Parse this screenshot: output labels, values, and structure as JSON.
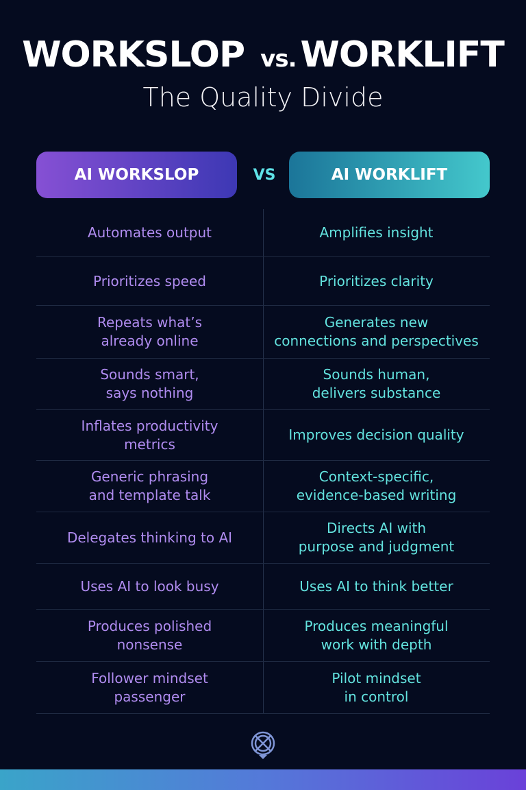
{
  "header": {
    "title_left": "WORKSLOP",
    "title_vs": "vs.",
    "title_right": "WORKLIFT",
    "subtitle": "The Quality Divide"
  },
  "columns": {
    "left_label": "AI WORKSLOP",
    "vs_label": "VS",
    "right_label": "AI WORKLIFT"
  },
  "rows": [
    {
      "left": "Automates output",
      "right": "Amplifies insight"
    },
    {
      "left": "Prioritizes speed",
      "right": "Prioritizes clarity"
    },
    {
      "left": "Repeats what’s\nalready online",
      "right": "Generates new\nconnections and perspectives"
    },
    {
      "left": "Sounds smart,\nsays nothing",
      "right": "Sounds human,\ndelivers substance"
    },
    {
      "left": "Inflates productivity\nmetrics",
      "right": "Improves decision quality"
    },
    {
      "left": "Generic phrasing\nand template talk",
      "right": "Context-specific,\nevidence-based writing"
    },
    {
      "left": "Delegates thinking to AI",
      "right": "Directs AI with\npurpose and judgment"
    },
    {
      "left": "Uses AI to look busy",
      "right": "Uses AI to think better"
    },
    {
      "left": "Produces polished\nnonsense",
      "right": "Produces meaningful\nwork with depth"
    },
    {
      "left": "Follower mindset\npassenger",
      "right": "Pilot mindset\nin control"
    }
  ],
  "colors": {
    "background": "#050b1f",
    "left_text": "#b08cf0",
    "right_text": "#63e3df",
    "logo": "#7f95d6"
  },
  "icons": {
    "logo": "crossed-circle-pin-logo"
  }
}
